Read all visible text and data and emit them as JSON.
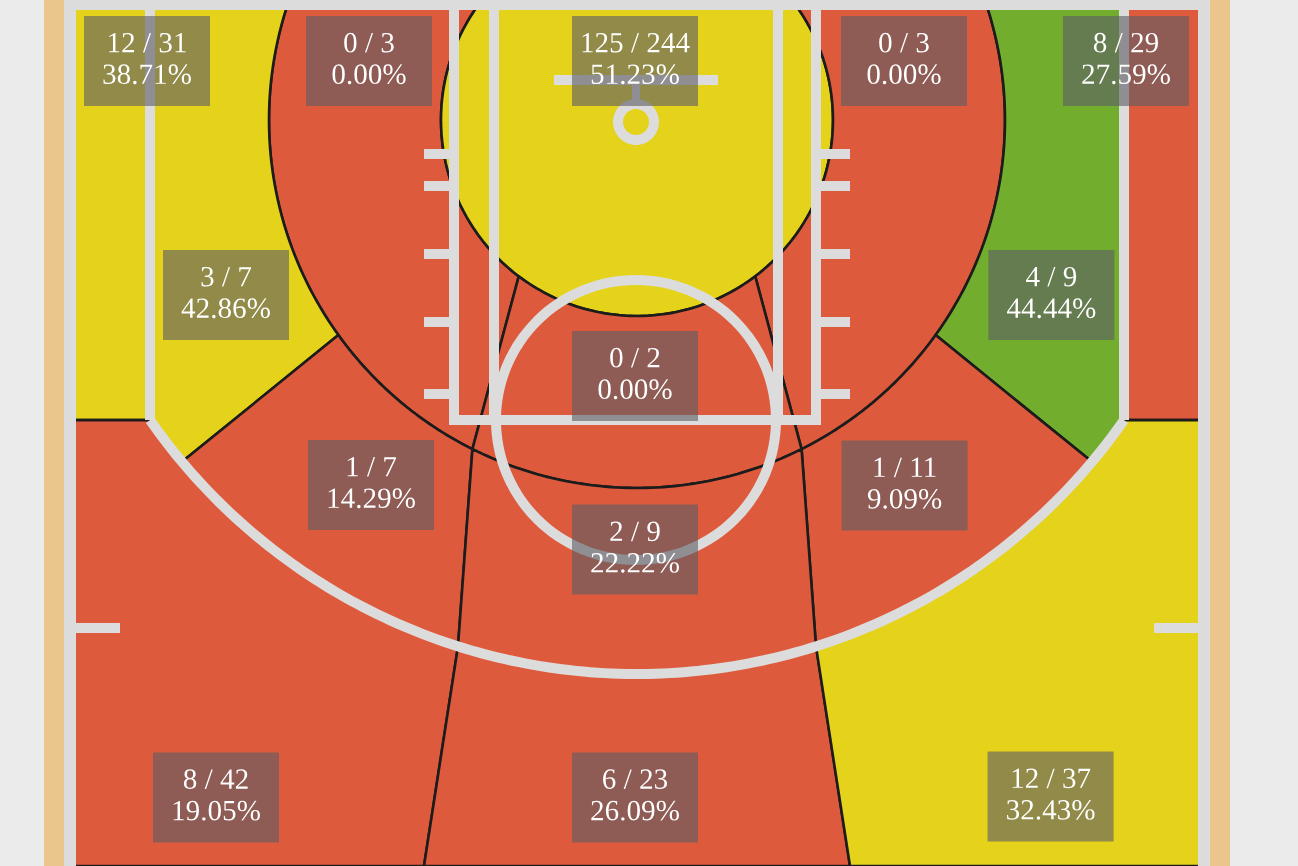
{
  "chart_data": {
    "type": "other",
    "categories": [
      null,
      null,
      null,
      null,
      null,
      null,
      null,
      null,
      null,
      null,
      null,
      null,
      null,
      null
    ],
    "values": [
      38.71,
      0,
      51.23,
      0,
      27.59,
      42.86,
      44.44,
      0,
      14.29,
      9.09,
      22.22,
      19.05,
      26.09,
      32.43
    ],
    "value_labels": [
      "12 / 31\n38.71%",
      "0 / 3\n0.00%",
      "125 / 244\n51.23%",
      "0 / 3\n0.00%",
      "8 / 29\n27.59%",
      "3 / 7\n42.86%",
      "4 / 9\n44.44%",
      "0 / 2\n0.00%",
      "1 / 7\n14.29%",
      "1 / 11\n9.09%",
      "2 / 9\n22.22%",
      "8 / 42\n19.05%",
      "6 / 23\n26.09%",
      "12 / 37\n32.43%"
    ],
    "colors": [
      "#e5d21a",
      "#de5a3c",
      "#e5d21a",
      "#de5a3c",
      "#de5a3c",
      "#e5d21a",
      "#72ad2e",
      "#de5a3c",
      "#de5a3c",
      "#de5a3c",
      "#de5a3c",
      "#de5a3c",
      "#de5a3c",
      "#e5d21a"
    ]
  }
}
